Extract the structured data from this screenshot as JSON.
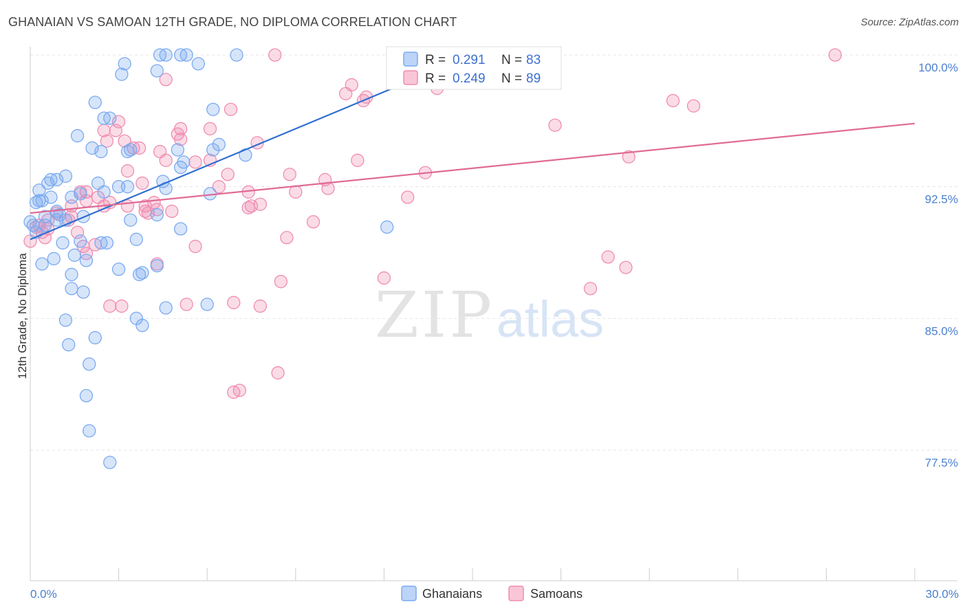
{
  "title": "GHANAIAN VS SAMOAN 12TH GRADE, NO DIPLOMA CORRELATION CHART",
  "source": "Source: ZipAtlas.com",
  "watermark": {
    "zip": "ZIP",
    "atlas": "atlas"
  },
  "legend": {
    "rows": [
      {
        "r_label": "R =",
        "r_value": "0.291",
        "n_label": "N =",
        "n_value": "83",
        "color": "#7aaaf0"
      },
      {
        "r_label": "R =",
        "r_value": "0.249",
        "n_label": "N =",
        "n_value": "89",
        "color": "#f08cb0"
      }
    ]
  },
  "bottom_legend": [
    "Ghanaians",
    "Samoans"
  ],
  "chart_data": {
    "type": "scatter",
    "title": "GHANAIAN VS SAMOAN 12TH GRADE, NO DIPLOMA CORRELATION CHART",
    "xlabel": "",
    "ylabel": "12th Grade, No Diploma",
    "xlim": [
      0,
      30
    ],
    "ylim": [
      70,
      101
    ],
    "x_tick_labels": [
      "0.0%",
      "30.0%"
    ],
    "y_ticks": [
      77.5,
      85.0,
      92.5,
      100.0
    ],
    "y_tick_labels": [
      "77.5%",
      "85.0%",
      "92.5%",
      "100.0%"
    ],
    "grid": true,
    "legend_position": "top-center",
    "series": [
      {
        "name": "Ghanaians",
        "color": "#7aaaf0",
        "line_color": "#2f6fcf",
        "trend": {
          "x": [
            0,
            15.0
          ],
          "y": [
            89.5,
            100.0
          ]
        },
        "points": [
          [
            4.4,
            100
          ],
          [
            4.6,
            100
          ],
          [
            5.1,
            100
          ],
          [
            5.3,
            100
          ],
          [
            7.0,
            100
          ],
          [
            3.2,
            99.5
          ],
          [
            5.7,
            99.5
          ],
          [
            4.3,
            99.1
          ],
          [
            3.1,
            98.9
          ],
          [
            2.2,
            97.3
          ],
          [
            6.2,
            96.9
          ],
          [
            2.5,
            96.4
          ],
          [
            2.7,
            96.4
          ],
          [
            1.6,
            95.4
          ],
          [
            6.4,
            94.9
          ],
          [
            2.1,
            94.7
          ],
          [
            2.4,
            94.5
          ],
          [
            3.3,
            94.5
          ],
          [
            3.4,
            94.6
          ],
          [
            5.0,
            94.6
          ],
          [
            6.2,
            94.6
          ],
          [
            7.3,
            94.3
          ],
          [
            5.2,
            93.9
          ],
          [
            5.1,
            93.6
          ],
          [
            1.2,
            93.1
          ],
          [
            0.7,
            92.9
          ],
          [
            0.9,
            92.9
          ],
          [
            0.6,
            92.7
          ],
          [
            2.3,
            92.7
          ],
          [
            3.0,
            92.5
          ],
          [
            3.3,
            92.5
          ],
          [
            4.5,
            92.8
          ],
          [
            4.6,
            92.4
          ],
          [
            0.3,
            92.3
          ],
          [
            2.5,
            92.2
          ],
          [
            1.7,
            92.1
          ],
          [
            6.1,
            92.1
          ],
          [
            1.4,
            91.9
          ],
          [
            0.7,
            91.9
          ],
          [
            0.3,
            91.7
          ],
          [
            0.4,
            91.7
          ],
          [
            0.2,
            91.6
          ],
          [
            0.9,
            91.1
          ],
          [
            1.0,
            90.9
          ],
          [
            1.8,
            90.8
          ],
          [
            0.5,
            90.8
          ],
          [
            0.9,
            90.6
          ],
          [
            1.2,
            90.6
          ],
          [
            0.1,
            90.3
          ],
          [
            0.5,
            90.3
          ],
          [
            4.3,
            90.9
          ],
          [
            3.4,
            90.6
          ],
          [
            5.1,
            90.1
          ],
          [
            12.1,
            90.2
          ],
          [
            0.2,
            89.9
          ],
          [
            1.1,
            89.3
          ],
          [
            1.7,
            89.4
          ],
          [
            2.4,
            89.3
          ],
          [
            2.6,
            89.3
          ],
          [
            3.6,
            89.5
          ],
          [
            1.5,
            88.6
          ],
          [
            1.9,
            88.3
          ],
          [
            0.8,
            88.4
          ],
          [
            0.4,
            88.1
          ],
          [
            4.3,
            88.0
          ],
          [
            3.0,
            87.8
          ],
          [
            3.7,
            87.5
          ],
          [
            3.8,
            87.6
          ],
          [
            1.4,
            87.5
          ],
          [
            1.4,
            86.7
          ],
          [
            1.8,
            86.5
          ],
          [
            6.0,
            85.8
          ],
          [
            4.6,
            85.6
          ],
          [
            3.6,
            85.0
          ],
          [
            3.8,
            84.6
          ],
          [
            1.2,
            84.9
          ],
          [
            2.2,
            83.9
          ],
          [
            1.3,
            83.5
          ],
          [
            2.0,
            82.4
          ],
          [
            1.9,
            80.6
          ],
          [
            2.0,
            78.6
          ],
          [
            2.7,
            76.8
          ],
          [
            0.0,
            90.5
          ]
        ]
      },
      {
        "name": "Samoans",
        "color": "#f08cb0",
        "line_color": "#e06a95",
        "trend": {
          "x": [
            0,
            30
          ],
          "y": [
            91.0,
            96.1
          ]
        },
        "points": [
          [
            8.3,
            100
          ],
          [
            27.3,
            100
          ],
          [
            4.6,
            98.6
          ],
          [
            10.9,
            98.3
          ],
          [
            10.7,
            97.8
          ],
          [
            11.4,
            97.6
          ],
          [
            11.3,
            97.4
          ],
          [
            13.8,
            98.1
          ],
          [
            21.8,
            97.4
          ],
          [
            22.5,
            97.1
          ],
          [
            6.8,
            96.9
          ],
          [
            3.0,
            96.2
          ],
          [
            17.8,
            96.0
          ],
          [
            2.5,
            95.7
          ],
          [
            2.9,
            95.7
          ],
          [
            5.1,
            95.8
          ],
          [
            5.0,
            95.5
          ],
          [
            6.1,
            95.8
          ],
          [
            5.1,
            95.2
          ],
          [
            3.2,
            95.1
          ],
          [
            2.6,
            95.1
          ],
          [
            7.7,
            95.0
          ],
          [
            3.7,
            94.7
          ],
          [
            3.5,
            94.7
          ],
          [
            4.4,
            94.5
          ],
          [
            4.6,
            94.0
          ],
          [
            5.6,
            93.9
          ],
          [
            6.1,
            94.0
          ],
          [
            11.1,
            94.0
          ],
          [
            20.3,
            94.2
          ],
          [
            3.3,
            93.4
          ],
          [
            6.7,
            93.2
          ],
          [
            8.8,
            93.2
          ],
          [
            13.4,
            93.3
          ],
          [
            10.0,
            92.9
          ],
          [
            3.8,
            92.7
          ],
          [
            6.4,
            92.5
          ],
          [
            7.4,
            92.2
          ],
          [
            9.0,
            92.2
          ],
          [
            10.1,
            92.4
          ],
          [
            1.7,
            92.2
          ],
          [
            1.9,
            92.2
          ],
          [
            2.3,
            91.9
          ],
          [
            12.8,
            91.9
          ],
          [
            1.9,
            91.7
          ],
          [
            2.7,
            91.6
          ],
          [
            3.3,
            91.4
          ],
          [
            1.4,
            91.4
          ],
          [
            2.5,
            91.4
          ],
          [
            7.8,
            91.5
          ],
          [
            7.4,
            91.3
          ],
          [
            4.2,
            91.6
          ],
          [
            3.9,
            91.4
          ],
          [
            3.9,
            91.1
          ],
          [
            4.3,
            91.2
          ],
          [
            4.0,
            91.0
          ],
          [
            4.8,
            91.1
          ],
          [
            0.9,
            91.0
          ],
          [
            1.4,
            90.8
          ],
          [
            1.3,
            90.6
          ],
          [
            9.6,
            90.5
          ],
          [
            0.6,
            90.6
          ],
          [
            0.3,
            90.3
          ],
          [
            0.2,
            90.2
          ],
          [
            0.6,
            90.1
          ],
          [
            0.4,
            89.9
          ],
          [
            1.6,
            89.9
          ],
          [
            0.5,
            89.6
          ],
          [
            8.7,
            89.6
          ],
          [
            2.2,
            89.2
          ],
          [
            1.8,
            89.1
          ],
          [
            5.6,
            89.1
          ],
          [
            1.9,
            88.7
          ],
          [
            4.3,
            88.1
          ],
          [
            19.6,
            88.5
          ],
          [
            20.2,
            87.9
          ],
          [
            12.0,
            87.3
          ],
          [
            8.5,
            87.1
          ],
          [
            19.0,
            86.7
          ],
          [
            2.7,
            85.7
          ],
          [
            3.1,
            85.7
          ],
          [
            5.3,
            85.8
          ],
          [
            6.9,
            85.9
          ],
          [
            7.8,
            85.7
          ],
          [
            8.4,
            81.9
          ],
          [
            6.9,
            80.8
          ],
          [
            7.1,
            80.9
          ],
          [
            0.0,
            89.4
          ],
          [
            7.5,
            91.4
          ]
        ]
      }
    ]
  }
}
